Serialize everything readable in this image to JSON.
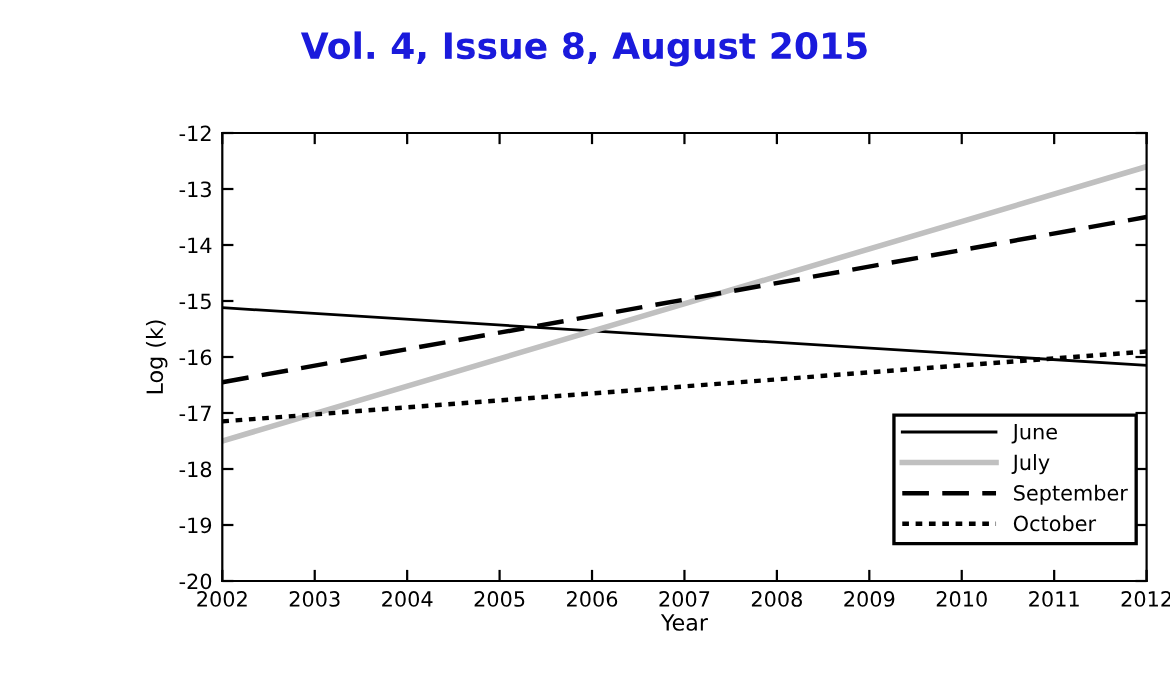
{
  "chart_data": {
    "type": "line",
    "title": "Vol. 4, Issue 8, August 2015",
    "xlabel": "Year",
    "ylabel": "Log (k)",
    "x": [
      2002,
      2012
    ],
    "series": [
      {
        "name": "June",
        "color": "#000000",
        "line_style": "solid",
        "values": [
          -15.12,
          -16.15
        ]
      },
      {
        "name": "July",
        "color": "#c0c0c0",
        "line_style": "solid",
        "values": [
          -17.5,
          -12.6
        ]
      },
      {
        "name": "September",
        "color": "#000000",
        "line_style": "dashed",
        "values": [
          -16.45,
          -13.5
        ]
      },
      {
        "name": "October",
        "color": "#000000",
        "line_style": "dotted",
        "values": [
          -17.15,
          -15.9
        ]
      }
    ],
    "xlim": [
      2002,
      2012
    ],
    "xticks": [
      2002,
      2003,
      2004,
      2005,
      2006,
      2007,
      2008,
      2009,
      2010,
      2011,
      2012
    ],
    "ylim": [
      -20,
      -12
    ],
    "yticks": [
      -20,
      -19,
      -18,
      -17,
      -16,
      -15,
      -14,
      -13,
      -12
    ],
    "grid": false,
    "legend": "bottom right",
    "marker": "none"
  }
}
